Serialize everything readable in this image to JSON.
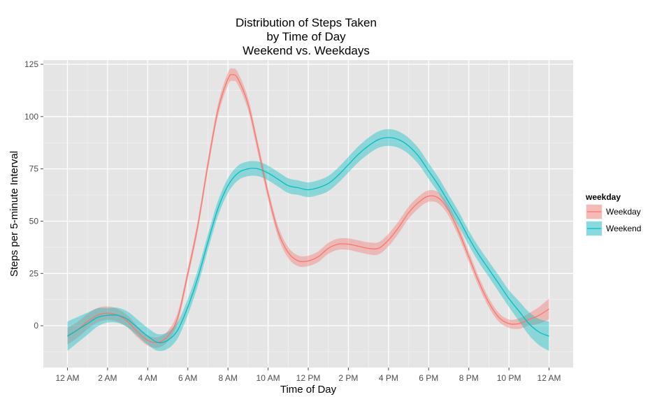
{
  "chart_data": {
    "type": "line",
    "title_lines": [
      "Distribution of Steps Taken",
      "by Time of Day",
      "Weekend vs. Weekdays"
    ],
    "xlabel": "Time of Day",
    "ylabel": "Steps per 5-minute Interval",
    "x_unit": "hours",
    "x_ticks": [
      {
        "value": 0,
        "label": "12 AM"
      },
      {
        "value": 2,
        "label": "2 AM"
      },
      {
        "value": 4,
        "label": "4 AM"
      },
      {
        "value": 6,
        "label": "6 AM"
      },
      {
        "value": 8,
        "label": "8 AM"
      },
      {
        "value": 10,
        "label": "10 AM"
      },
      {
        "value": 12,
        "label": "12 PM"
      },
      {
        "value": 14,
        "label": "2 PM"
      },
      {
        "value": 16,
        "label": "4 PM"
      },
      {
        "value": 18,
        "label": "6 PM"
      },
      {
        "value": 20,
        "label": "8 PM"
      },
      {
        "value": 22,
        "label": "10 PM"
      },
      {
        "value": 24,
        "label": "12 AM"
      }
    ],
    "y_ticks": [
      0,
      25,
      50,
      75,
      100,
      125
    ],
    "xlim": [
      -1.2,
      25.2
    ],
    "ylim": [
      -20,
      127
    ],
    "grid": true,
    "legend": {
      "title": "weekday",
      "placement": "right"
    },
    "series": [
      {
        "name": "Weekday",
        "color": "#F8766D",
        "band_color": "#F8766D",
        "points": [
          [
            0,
            -5
          ],
          [
            0.5,
            -2
          ],
          [
            1,
            2
          ],
          [
            1.5,
            5
          ],
          [
            2,
            6
          ],
          [
            2.5,
            5
          ],
          [
            3,
            2
          ],
          [
            3.5,
            -3
          ],
          [
            4,
            -7
          ],
          [
            4.5,
            -8
          ],
          [
            5,
            -5
          ],
          [
            5.5,
            4
          ],
          [
            6,
            25
          ],
          [
            6.5,
            48
          ],
          [
            7,
            77
          ],
          [
            7.5,
            103
          ],
          [
            8,
            118
          ],
          [
            8.25,
            120
          ],
          [
            8.5,
            118
          ],
          [
            9,
            106
          ],
          [
            9.5,
            85
          ],
          [
            10,
            63
          ],
          [
            10.5,
            45
          ],
          [
            11,
            35
          ],
          [
            11.5,
            31
          ],
          [
            12,
            31
          ],
          [
            12.5,
            33
          ],
          [
            13,
            37
          ],
          [
            13.5,
            39
          ],
          [
            14,
            39
          ],
          [
            14.5,
            38
          ],
          [
            15,
            37
          ],
          [
            15.5,
            37
          ],
          [
            16,
            41
          ],
          [
            16.5,
            47
          ],
          [
            17,
            54
          ],
          [
            17.5,
            59
          ],
          [
            18,
            62
          ],
          [
            18.5,
            61
          ],
          [
            19,
            55
          ],
          [
            19.5,
            45
          ],
          [
            20,
            33
          ],
          [
            20.5,
            21
          ],
          [
            21,
            11
          ],
          [
            21.5,
            4
          ],
          [
            22,
            1
          ],
          [
            22.5,
            1
          ],
          [
            23,
            3
          ],
          [
            23.5,
            5
          ],
          [
            24,
            8
          ]
        ],
        "band_halfwidth": [
          [
            0,
            4
          ],
          [
            4,
            2.5
          ],
          [
            6,
            2.5
          ],
          [
            8,
            3
          ],
          [
            12,
            2.5
          ],
          [
            16,
            3
          ],
          [
            20,
            2.5
          ],
          [
            22,
            2
          ],
          [
            23,
            3
          ],
          [
            24,
            5
          ]
        ]
      },
      {
        "name": "Weekend",
        "color": "#00BFC4",
        "band_color": "#00BFC4",
        "points": [
          [
            0,
            -5
          ],
          [
            0.5,
            -2
          ],
          [
            1,
            1
          ],
          [
            1.5,
            4
          ],
          [
            2,
            5
          ],
          [
            2.5,
            5
          ],
          [
            3,
            3
          ],
          [
            3.5,
            -1
          ],
          [
            4,
            -5
          ],
          [
            4.5,
            -8
          ],
          [
            5,
            -7
          ],
          [
            5.5,
            -2
          ],
          [
            6,
            9
          ],
          [
            6.5,
            23
          ],
          [
            7,
            40
          ],
          [
            7.5,
            56
          ],
          [
            8,
            67
          ],
          [
            8.5,
            73
          ],
          [
            9,
            75
          ],
          [
            9.5,
            75
          ],
          [
            10,
            73
          ],
          [
            10.5,
            70
          ],
          [
            11,
            67
          ],
          [
            11.5,
            66
          ],
          [
            12,
            65
          ],
          [
            12.5,
            66
          ],
          [
            13,
            68
          ],
          [
            13.5,
            72
          ],
          [
            14,
            77
          ],
          [
            14.5,
            82
          ],
          [
            15,
            86
          ],
          [
            15.5,
            89
          ],
          [
            16,
            90
          ],
          [
            16.5,
            89
          ],
          [
            17,
            86
          ],
          [
            17.5,
            81
          ],
          [
            18,
            74
          ],
          [
            18.5,
            67
          ],
          [
            19,
            59
          ],
          [
            19.5,
            51
          ],
          [
            20,
            42
          ],
          [
            20.5,
            34
          ],
          [
            21,
            27
          ],
          [
            21.5,
            20
          ],
          [
            22,
            13
          ],
          [
            22.5,
            7
          ],
          [
            23,
            1
          ],
          [
            23.5,
            -3
          ],
          [
            24,
            -5
          ]
        ],
        "band_halfwidth": [
          [
            0,
            7
          ],
          [
            2,
            3.5
          ],
          [
            4,
            4
          ],
          [
            5,
            4
          ],
          [
            8,
            3.5
          ],
          [
            12,
            3.5
          ],
          [
            16,
            4
          ],
          [
            20,
            3.5
          ],
          [
            22,
            4
          ],
          [
            24,
            7
          ]
        ]
      }
    ]
  }
}
